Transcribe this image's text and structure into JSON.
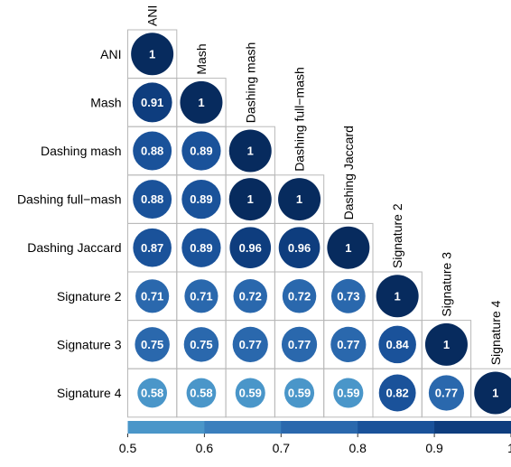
{
  "chart_data": {
    "type": "heatmap",
    "subtype": "correlation-circle-lower-triangle",
    "title": "",
    "variables": [
      "ANI",
      "Mash",
      "Dashing mash",
      "Dashing full−mash",
      "Dashing Jaccard",
      "Signature 2",
      "Signature 3",
      "Signature 4"
    ],
    "matrix": [
      [
        1
      ],
      [
        0.91,
        1
      ],
      [
        0.88,
        0.89,
        1
      ],
      [
        0.88,
        0.89,
        1,
        1
      ],
      [
        0.87,
        0.89,
        0.96,
        0.96,
        1
      ],
      [
        0.71,
        0.71,
        0.72,
        0.72,
        0.73,
        1
      ],
      [
        0.75,
        0.75,
        0.77,
        0.77,
        0.77,
        0.84,
        1
      ],
      [
        0.58,
        0.58,
        0.59,
        0.59,
        0.59,
        0.82,
        0.77,
        1
      ]
    ],
    "labels": [
      [
        "1"
      ],
      [
        "0.91",
        "1"
      ],
      [
        "0.88",
        "0.89",
        "1"
      ],
      [
        "0.88",
        "0.89",
        "1",
        "1"
      ],
      [
        "0.87",
        "0.89",
        "0.96",
        "0.96",
        "1"
      ],
      [
        "0.71",
        "0.71",
        "0.72",
        "0.72",
        "0.73",
        "1"
      ],
      [
        "0.75",
        "0.75",
        "0.77",
        "0.77",
        "0.77",
        "0.84",
        "1"
      ],
      [
        "0.58",
        "0.58",
        "0.59",
        "0.59",
        "0.59",
        "0.82",
        "0.77",
        "1"
      ]
    ],
    "colorbar": {
      "range": [
        0.5,
        1.0
      ],
      "ticks": [
        0.5,
        0.6,
        0.7,
        0.8,
        0.9,
        1.0
      ],
      "tick_labels": [
        "0.5",
        "0.6",
        "0.7",
        "0.8",
        "0.9",
        "1"
      ],
      "colors": [
        "#4a96c9",
        "#3a7fbd",
        "#2a68ad",
        "#1a529a",
        "#0e3d7e",
        "#072b5e"
      ],
      "position": "bottom"
    },
    "cell_border_color": "#b8b8b8",
    "value_text_color": "#ffffff"
  }
}
